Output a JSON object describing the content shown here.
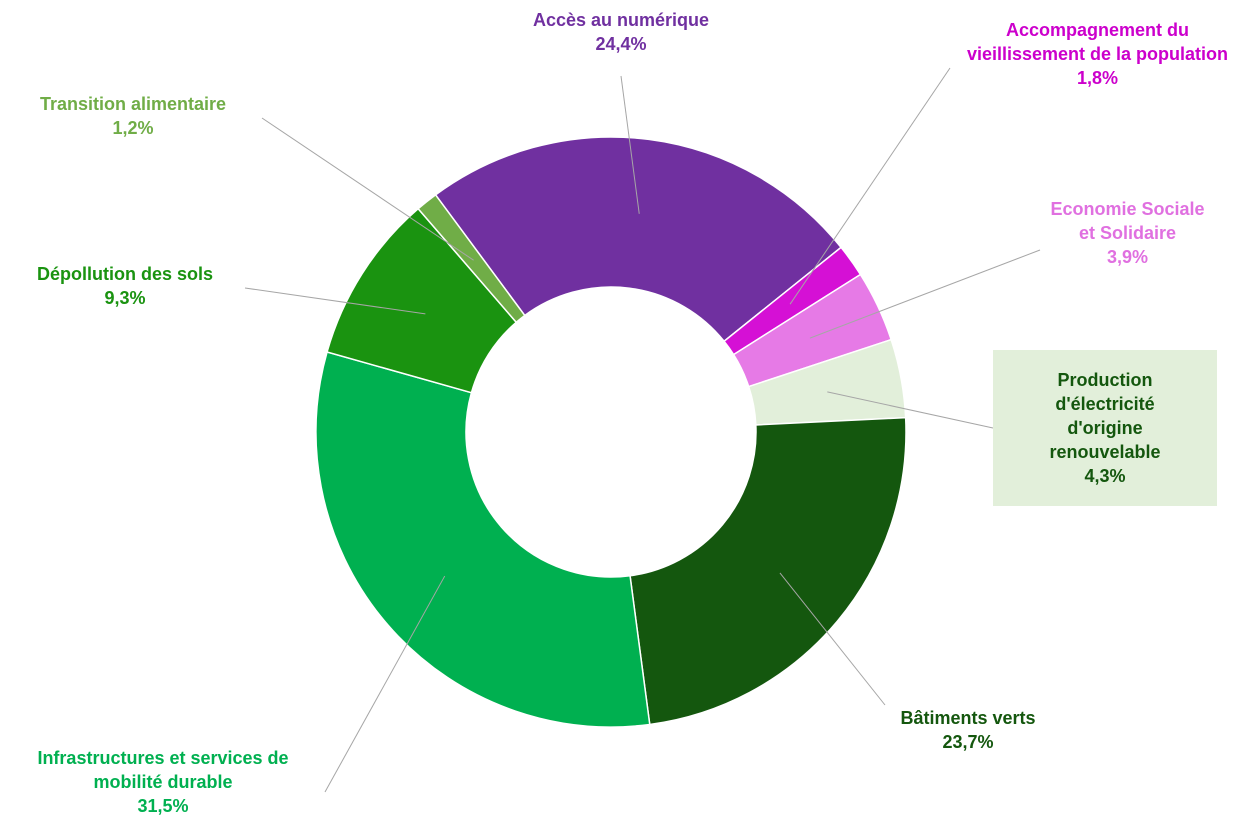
{
  "chart_data": {
    "type": "donut",
    "categories": [
      "Accès au numérique",
      "Accompagnement du vieillissement de la population",
      "Economie Sociale et Solidaire",
      "Production d'électricité d'origine renouvelable",
      "Bâtiments verts",
      "Infrastructures et services de mobilité durable",
      "Dépollution des sols",
      "Transition alimentaire"
    ],
    "values": [
      24.4,
      1.8,
      3.9,
      4.3,
      23.7,
      31.5,
      9.3,
      1.2
    ],
    "value_labels": [
      "24,4%",
      "1,8%",
      "3,9%",
      "4,3%",
      "23,7%",
      "31,5%",
      "9,3%",
      "1,2%"
    ],
    "colors": [
      "#7030a0",
      "#d510d5",
      "#e67ae6",
      "#e2efda",
      "#14570e",
      "#00b050",
      "#1a9310",
      "#70ad47"
    ]
  }
}
